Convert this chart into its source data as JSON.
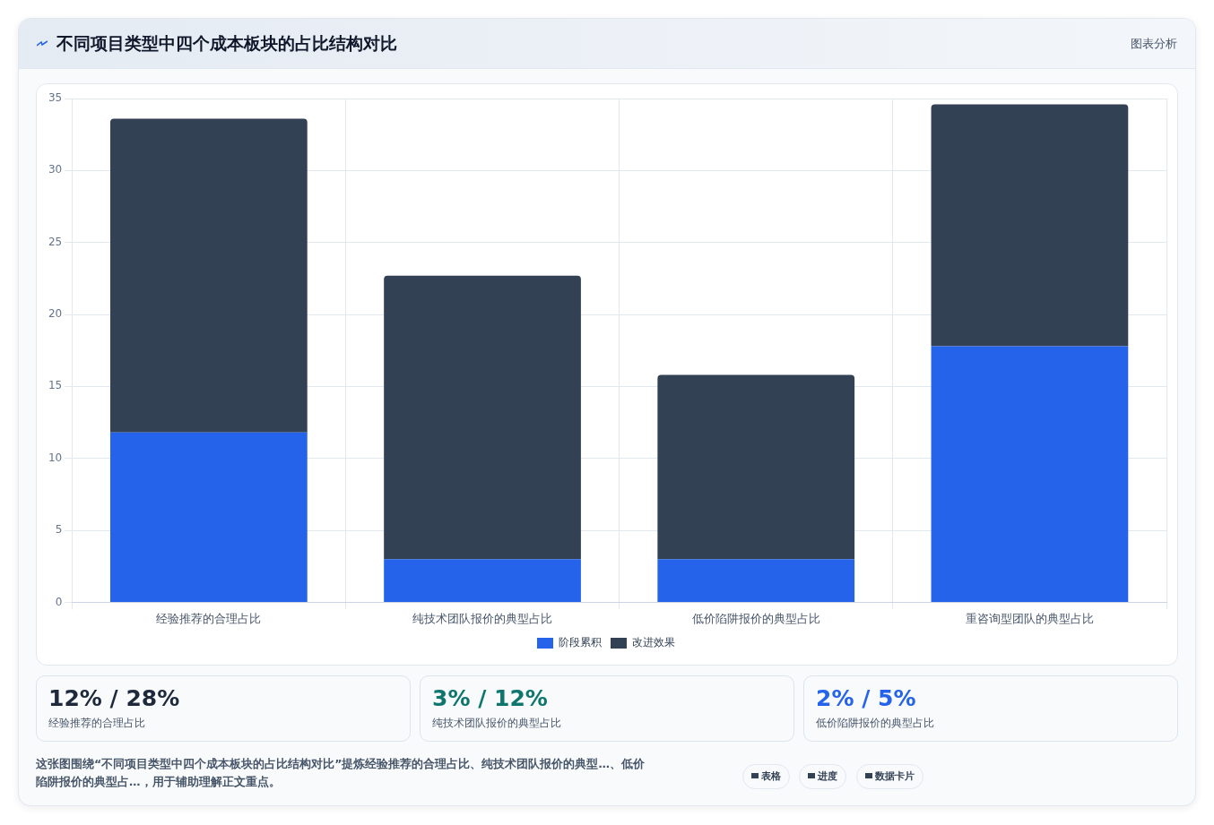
{
  "chart_data": {
    "type": "bar",
    "title": "不同项目类型中四个成本板块的占比结构对比",
    "categories": [
      "经验推荐的合理占比",
      "纯技术团队报价的典型占比",
      "低价陷阱报价的典型占比",
      "重咨询型团队的典型占比"
    ],
    "series": [
      {
        "name": "阶段累积",
        "color": "#2563eb",
        "values": [
          11.8,
          3,
          3,
          17.8
        ]
      },
      {
        "name": "改进效果",
        "color": "#334155",
        "values": [
          21.8,
          19.7,
          12.8,
          16.8
        ]
      }
    ],
    "stacked": true,
    "ylim": [
      0,
      35
    ],
    "yticks": [
      0,
      5,
      10,
      15,
      20,
      25,
      30,
      35
    ],
    "grid": true,
    "legend": "bottom",
    "annotations": [
      "图表分析",
      "12% / 28%",
      "经验推荐的合理占比",
      "3% / 12%",
      "纯技术团队报价的典型占比",
      "2% / 5%",
      "低价陷阱报价的典型占比",
      "这张图围绕“不同项目类型中四个成本板块的占比结构对比”提炼经验推荐的合理占比、纯技术团队报价的典型…、低价陷阱报价的典型占…，用于辅助理解正文重点。",
      "表格",
      "进度",
      "数据卡片"
    ]
  }
}
